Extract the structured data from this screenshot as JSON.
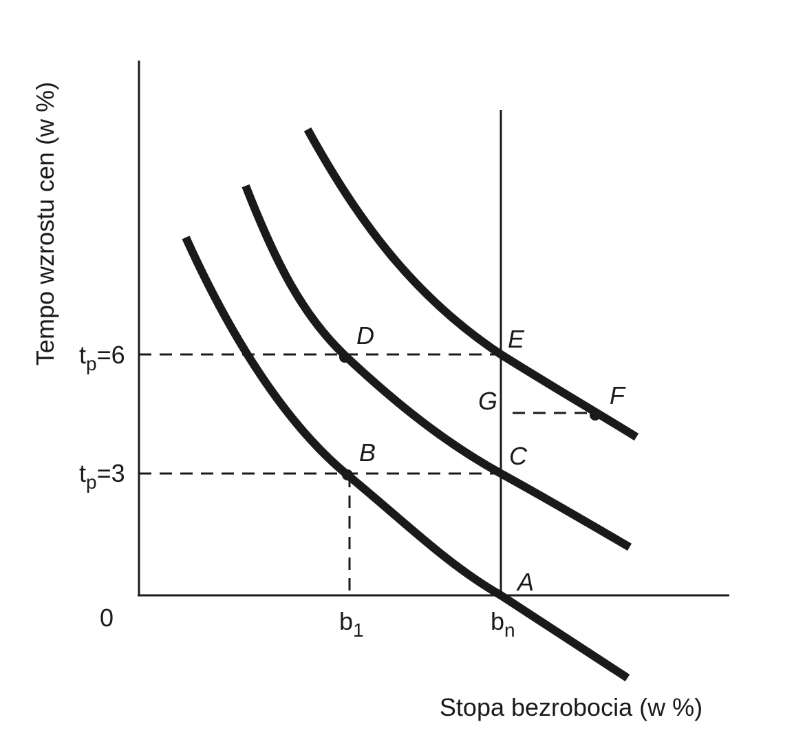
{
  "axes": {
    "y_label": "Tempo wzrostu cen (w %)",
    "x_label": "Stopa bezrobocia (w %)",
    "origin": "0"
  },
  "x_marks": [
    {
      "base": "b",
      "sub": "1"
    },
    {
      "base": "b",
      "sub": "n"
    }
  ],
  "y_marks": [
    {
      "base": "t",
      "sub": "p",
      "rest": "=6"
    },
    {
      "base": "t",
      "sub": "p",
      "rest": "=3"
    }
  ],
  "points": [
    "A",
    "B",
    "C",
    "D",
    "E",
    "F",
    "G"
  ]
}
